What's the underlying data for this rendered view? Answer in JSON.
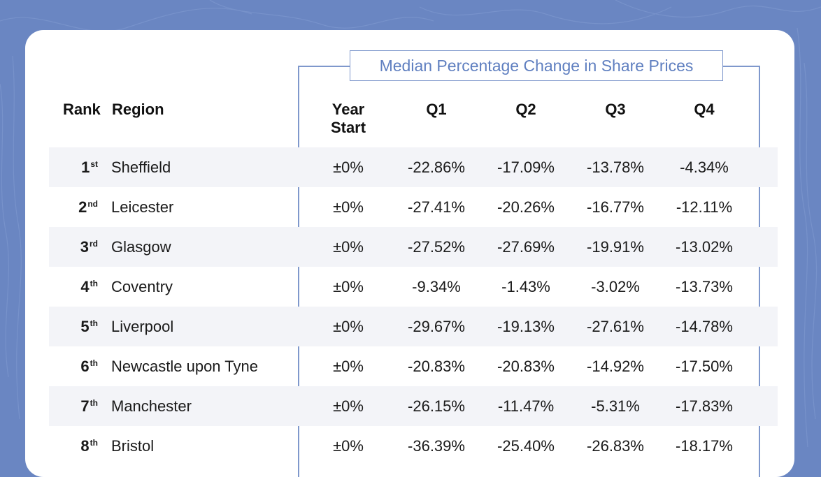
{
  "table": {
    "group_title": "Median Percentage Change in Share Prices",
    "headers": {
      "rank": "Rank",
      "region": "Region",
      "year_start_line1": "Year",
      "year_start_line2": "Start",
      "q1": "Q1",
      "q2": "Q2",
      "q3": "Q3",
      "q4": "Q4"
    },
    "rows": [
      {
        "rank": "1",
        "suffix": "st",
        "region": "Sheffield",
        "year_start": "±0%",
        "q1": "-22.86%",
        "q2": "-17.09%",
        "q3": "-13.78%",
        "q4": "-4.34%"
      },
      {
        "rank": "2",
        "suffix": "nd",
        "region": "Leicester",
        "year_start": "±0%",
        "q1": "-27.41%",
        "q2": "-20.26%",
        "q3": "-16.77%",
        "q4": "-12.11%"
      },
      {
        "rank": "3",
        "suffix": "rd",
        "region": "Glasgow",
        "year_start": "±0%",
        "q1": "-27.52%",
        "q2": "-27.69%",
        "q3": "-19.91%",
        "q4": "-13.02%"
      },
      {
        "rank": "4",
        "suffix": "th",
        "region": "Coventry",
        "year_start": "±0%",
        "q1": "-9.34%",
        "q2": "-1.43%",
        "q3": "-3.02%",
        "q4": "-13.73%"
      },
      {
        "rank": "5",
        "suffix": "th",
        "region": "Liverpool",
        "year_start": "±0%",
        "q1": "-29.67%",
        "q2": "-19.13%",
        "q3": "-27.61%",
        "q4": "-14.78%"
      },
      {
        "rank": "6",
        "suffix": "th",
        "region": "Newcastle upon Tyne",
        "year_start": "±0%",
        "q1": "-20.83%",
        "q2": "-20.83%",
        "q3": "-14.92%",
        "q4": "-17.50%"
      },
      {
        "rank": "7",
        "suffix": "th",
        "region": "Manchester",
        "year_start": "±0%",
        "q1": "-26.15%",
        "q2": "-11.47%",
        "q3": "-5.31%",
        "q4": "-17.83%"
      },
      {
        "rank": "8",
        "suffix": "th",
        "region": "Bristol",
        "year_start": "±0%",
        "q1": "-36.39%",
        "q2": "-25.40%",
        "q3": "-26.83%",
        "q4": "-18.17%"
      }
    ]
  },
  "colors": {
    "background": "#6a86c2",
    "card": "#ffffff",
    "accent": "#5f7fc0",
    "row_shade": "#f3f4f8"
  }
}
